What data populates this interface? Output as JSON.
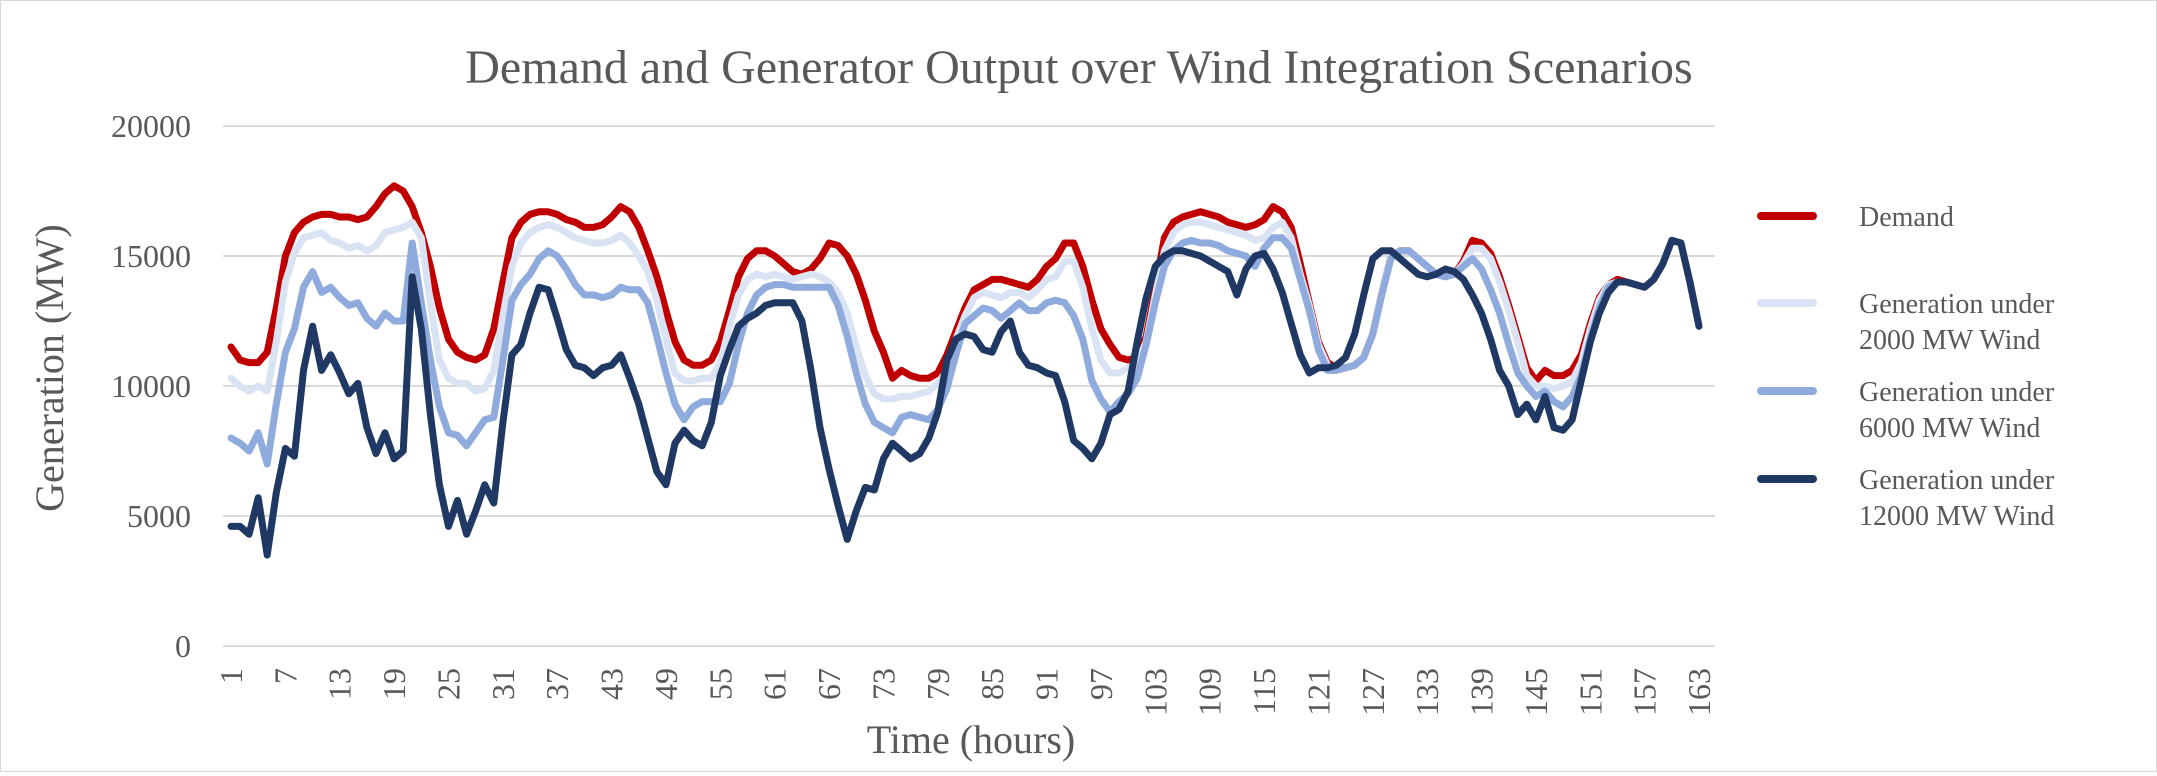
{
  "chart_data": {
    "type": "line",
    "title": "Demand and Generator Output over Wind Integration Scenarios",
    "xlabel": "Time (hours)",
    "ylabel": "Generation (MW)",
    "ylim": [
      0,
      20000
    ],
    "yticks": [
      "0",
      "5000",
      "10000",
      "15000",
      "20000"
    ],
    "xticks": [
      "1",
      "7",
      "13",
      "19",
      "25",
      "31",
      "37",
      "43",
      "49",
      "55",
      "61",
      "67",
      "73",
      "79",
      "85",
      "91",
      "97",
      "103",
      "109",
      "115",
      "121",
      "127",
      "133",
      "139",
      "145",
      "151",
      "157",
      "163"
    ],
    "grid": true,
    "legend_position": "right",
    "series": [
      {
        "name": "Demand",
        "color": "#C00000",
        "values": [
          11500,
          11000,
          10900,
          10900,
          11300,
          13000,
          15000,
          15900,
          16300,
          16500,
          16600,
          16600,
          16500,
          16500,
          16400,
          16500,
          16900,
          17400,
          17700,
          17500,
          16900,
          15900,
          14600,
          13000,
          11800,
          11300,
          11100,
          11000,
          11200,
          12200,
          14000,
          15700,
          16300,
          16600,
          16700,
          16700,
          16600,
          16400,
          16300,
          16100,
          16100,
          16200,
          16500,
          16900,
          16700,
          16100,
          15200,
          14200,
          12900,
          11700,
          11000,
          10800,
          10800,
          11000,
          11700,
          12900,
          14200,
          14900,
          15200,
          15200,
          15000,
          14700,
          14400,
          14300,
          14500,
          14900,
          15500,
          15400,
          15000,
          14300,
          13300,
          12100,
          11300,
          10300,
          10600,
          10400,
          10300,
          10300,
          10500,
          11200,
          12100,
          13000,
          13700,
          13900,
          14100,
          14100,
          14000,
          13900,
          13800,
          14100,
          14600,
          14900,
          15500,
          15500,
          14600,
          13300,
          12200,
          11600,
          11100,
          11000,
          11100,
          11900,
          13800,
          15700,
          16300,
          16500,
          16600,
          16700,
          16600,
          16500,
          16300,
          16200,
          16100,
          16200,
          16400,
          16900,
          16700,
          16100,
          14700,
          13200,
          11700,
          10900,
          10700,
          10700,
          10800,
          11100,
          12000,
          13600,
          15000,
          15200,
          15200,
          14900,
          14600,
          14300,
          14200,
          14300,
          14800,
          15600,
          15500,
          15100,
          14200,
          13100,
          11900,
          10700,
          10200,
          10600,
          10400,
          10400,
          10600,
          11200,
          12400,
          13400,
          13900,
          14100,
          14000,
          13900,
          13800,
          14100,
          14700,
          15600,
          15500,
          14000,
          12300
        ]
      },
      {
        "name": "Generation under 2000 MW Wind",
        "color": "#DAE3F3",
        "values": [
          10300,
          10000,
          9800,
          10000,
          9800,
          11700,
          14000,
          15100,
          15700,
          15800,
          15900,
          15600,
          15500,
          15300,
          15400,
          15200,
          15400,
          15900,
          16000,
          16100,
          16300,
          15700,
          13200,
          11000,
          10300,
          10100,
          10100,
          9800,
          9900,
          10600,
          12700,
          14600,
          15500,
          15900,
          16100,
          16200,
          16100,
          15900,
          15700,
          15600,
          15500,
          15500,
          15600,
          15800,
          15500,
          15000,
          14400,
          13300,
          11800,
          10500,
          10200,
          10200,
          10300,
          10300,
          10900,
          12300,
          13500,
          14100,
          14300,
          14200,
          14300,
          14200,
          14100,
          14200,
          14300,
          14200,
          14000,
          13600,
          12800,
          11500,
          10400,
          9700,
          9500,
          9500,
          9600,
          9600,
          9700,
          9800,
          10100,
          10600,
          11800,
          12700,
          13400,
          13600,
          13500,
          13400,
          13600,
          13600,
          13400,
          13700,
          14100,
          14200,
          14800,
          14800,
          13800,
          12200,
          11000,
          10500,
          10500,
          10700,
          10900,
          11700,
          13500,
          15200,
          15900,
          16200,
          16300,
          16300,
          16200,
          16100,
          16000,
          15900,
          15800,
          15600,
          15700,
          16100,
          16300,
          15700,
          14300,
          13100,
          11600,
          10800,
          10600,
          10700,
          10800,
          11100,
          12000,
          13600,
          15000,
          15200,
          15200,
          14900,
          14600,
          14300,
          14200,
          14300,
          14700,
          15300,
          15300,
          14900,
          14000,
          12900,
          11700,
          10400,
          10000,
          10000,
          9900,
          10000,
          10200,
          10900,
          12200,
          13300,
          13900,
          14000,
          14000,
          13900,
          13800,
          14100,
          14700,
          15600,
          15500,
          14000,
          12300
        ]
      },
      {
        "name": "Generation under 6000 MW Wind",
        "color": "#8FAADC",
        "values": [
          8000,
          7800,
          7500,
          8200,
          7000,
          9300,
          11300,
          12200,
          13800,
          14400,
          13600,
          13800,
          13400,
          13100,
          13200,
          12600,
          12300,
          12800,
          12500,
          12500,
          15500,
          13200,
          11000,
          9200,
          8200,
          8100,
          7700,
          8200,
          8700,
          8800,
          11000,
          13300,
          13900,
          14300,
          14900,
          15200,
          15000,
          14500,
          13900,
          13500,
          13500,
          13400,
          13500,
          13800,
          13700,
          13700,
          13200,
          11900,
          10500,
          9300,
          8700,
          9200,
          9400,
          9400,
          9400,
          10100,
          11600,
          12800,
          13500,
          13800,
          13900,
          13900,
          13800,
          13800,
          13800,
          13800,
          13800,
          13100,
          11900,
          10500,
          9300,
          8600,
          8400,
          8200,
          8800,
          8900,
          8800,
          8700,
          9100,
          9900,
          11200,
          12400,
          12700,
          13000,
          12900,
          12600,
          12900,
          13200,
          12900,
          12900,
          13200,
          13300,
          13200,
          12700,
          11800,
          10200,
          9500,
          9000,
          9400,
          9700,
          10300,
          11600,
          13200,
          14600,
          15200,
          15500,
          15600,
          15500,
          15500,
          15400,
          15200,
          15100,
          15000,
          14600,
          15300,
          15700,
          15700,
          15300,
          14100,
          12900,
          11400,
          10600,
          10600,
          10700,
          10800,
          11100,
          12000,
          13500,
          14900,
          15200,
          15200,
          14900,
          14600,
          14300,
          14200,
          14300,
          14600,
          14900,
          14500,
          13700,
          12800,
          11600,
          10500,
          10000,
          9600,
          9800,
          9400,
          9200,
          9600,
          10400,
          11800,
          13000,
          13800,
          14000,
          14000,
          13900,
          13800,
          14100,
          14700,
          15600,
          15500,
          14000,
          12300
        ]
      },
      {
        "name": "Generation under 12000 MW Wind",
        "color": "#1F3864",
        "values": [
          4600,
          4600,
          4300,
          5700,
          3500,
          5900,
          7600,
          7300,
          10600,
          12300,
          10600,
          11200,
          10500,
          9700,
          10100,
          8400,
          7400,
          8200,
          7200,
          7500,
          14200,
          12200,
          8900,
          6200,
          4600,
          5600,
          4300,
          5200,
          6200,
          5500,
          8600,
          11200,
          11600,
          12800,
          13800,
          13700,
          12600,
          11400,
          10800,
          10700,
          10400,
          10700,
          10800,
          11200,
          10300,
          9300,
          8000,
          6700,
          6200,
          7800,
          8300,
          7900,
          7700,
          8600,
          10400,
          11400,
          12300,
          12600,
          12800,
          13100,
          13200,
          13200,
          13200,
          12500,
          10600,
          8400,
          6800,
          5400,
          4100,
          5200,
          6100,
          6000,
          7200,
          7800,
          7500,
          7200,
          7400,
          8000,
          9000,
          11000,
          11800,
          12000,
          11900,
          11400,
          11300,
          12100,
          12500,
          11300,
          10800,
          10700,
          10500,
          10400,
          9400,
          7900,
          7600,
          7200,
          7800,
          8900,
          9100,
          9800,
          11700,
          13400,
          14600,
          15000,
          15200,
          15200,
          15100,
          15000,
          14800,
          14600,
          14400,
          13500,
          14500,
          15000,
          15100,
          14500,
          13600,
          12400,
          11200,
          10500,
          10700,
          10700,
          10800,
          11100,
          12000,
          13500,
          14900,
          15200,
          15200,
          14900,
          14600,
          14300,
          14200,
          14300,
          14500,
          14400,
          14100,
          13500,
          12800,
          11800,
          10600,
          10000,
          8900,
          9300,
          8700,
          9600,
          8400,
          8300,
          8700,
          10200,
          11700,
          12800,
          13600,
          14000,
          14000,
          13900,
          13800,
          14100,
          14700,
          15600,
          15500,
          14000,
          12300
        ]
      }
    ]
  }
}
